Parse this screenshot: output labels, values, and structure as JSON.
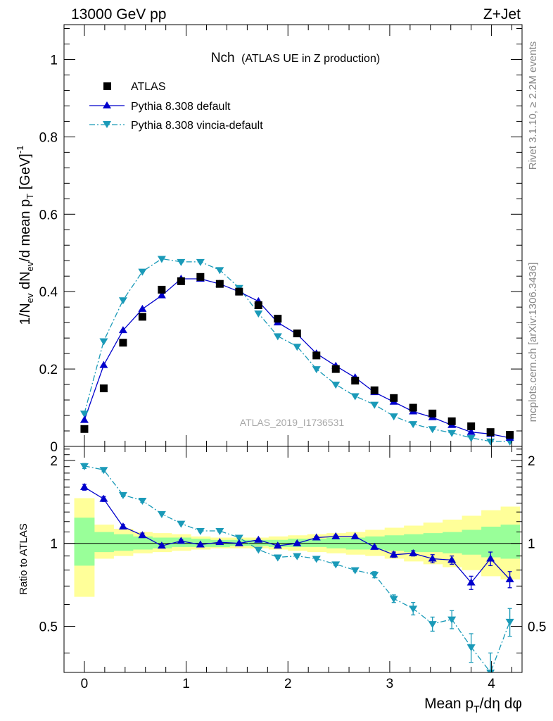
{
  "header": {
    "left": "13000 GeV pp",
    "right": "Z+Jet"
  },
  "side_labels": {
    "rivet": "Rivet 3.1.10, ≥ 2.2M events",
    "mcplots": "mcplots.cern.ch [arXiv:1306.3436]"
  },
  "colors": {
    "data": "#000000",
    "pythia_default": "#0000cc",
    "pythia_vincia": "#1a9ab8",
    "band_inner": "#99ff99",
    "band_outer": "#ffff99"
  },
  "chart_data": [
    {
      "type": "scatter",
      "panel": "main",
      "title": "Nch",
      "subtitle": "(ATLAS UE in Z production)",
      "analysis_label": "ATLAS_2019_I1736531",
      "ylabel": "1/N_ev dN_ev/d mean p_T [GeV]^-1",
      "xlim": [
        -0.2,
        4.3
      ],
      "ylim": [
        0,
        1.09
      ],
      "yticks": [
        0,
        0.2,
        0.4,
        0.6,
        0.8,
        1
      ],
      "ytick_labels": [
        "0",
        "0.2",
        "0.4",
        "0.6",
        "0.8",
        "1"
      ],
      "grid": false,
      "legend_position": "top-left",
      "x": [
        0.0,
        0.19,
        0.38,
        0.57,
        0.76,
        0.95,
        1.14,
        1.33,
        1.52,
        1.71,
        1.9,
        2.09,
        2.28,
        2.47,
        2.66,
        2.85,
        3.04,
        3.23,
        3.42,
        3.61,
        3.8,
        3.99,
        4.18
      ],
      "series": [
        {
          "name": "ATLAS",
          "style": "square-marker",
          "values": [
            0.045,
            0.15,
            0.268,
            0.335,
            0.405,
            0.427,
            0.438,
            0.42,
            0.4,
            0.365,
            0.33,
            0.292,
            0.235,
            0.2,
            0.17,
            0.145,
            0.125,
            0.1,
            0.085,
            0.065,
            0.052,
            0.037,
            0.03
          ]
        },
        {
          "name": "Pythia 8.308 default",
          "style": "solid-line-triangle-up",
          "values": [
            0.068,
            0.21,
            0.3,
            0.355,
            0.39,
            0.433,
            0.433,
            0.42,
            0.4,
            0.375,
            0.32,
            0.29,
            0.24,
            0.208,
            0.178,
            0.14,
            0.115,
            0.09,
            0.075,
            0.055,
            0.037,
            0.032,
            0.022
          ]
        },
        {
          "name": "Pythia 8.308 vincia-default",
          "style": "dashdot-line-triangle-down",
          "values": [
            0.085,
            0.272,
            0.378,
            0.452,
            0.485,
            0.477,
            0.477,
            0.456,
            0.41,
            0.344,
            0.285,
            0.258,
            0.2,
            0.16,
            0.13,
            0.108,
            0.078,
            0.058,
            0.045,
            0.035,
            0.022,
            0.013,
            0.013
          ]
        }
      ]
    },
    {
      "type": "line",
      "panel": "ratio",
      "xlabel": "Mean p_T/dη dφ",
      "ylabel": "Ratio to ATLAS",
      "xlim": [
        -0.2,
        4.3
      ],
      "ylim": [
        0.34,
        2.25
      ],
      "xticks": [
        0,
        1,
        2,
        3,
        4
      ],
      "xtick_labels": [
        "0",
        "1",
        "2",
        "3",
        "4"
      ],
      "yticks": [
        0.5,
        1,
        2
      ],
      "ytick_labels": [
        "0.5",
        "1",
        "2"
      ],
      "x": [
        0.0,
        0.19,
        0.38,
        0.57,
        0.76,
        0.95,
        1.14,
        1.33,
        1.52,
        1.71,
        1.9,
        2.09,
        2.28,
        2.47,
        2.66,
        2.85,
        3.04,
        3.23,
        3.42,
        3.61,
        3.8,
        3.99,
        4.18
      ],
      "bin_edges": [
        -0.1,
        0.1,
        0.29,
        0.48,
        0.67,
        0.86,
        1.05,
        1.24,
        1.43,
        1.62,
        1.81,
        2.0,
        2.19,
        2.38,
        2.57,
        2.76,
        2.95,
        3.14,
        3.33,
        3.52,
        3.71,
        3.9,
        4.09,
        4.28
      ],
      "band_inner": {
        "lower": [
          0.83,
          0.93,
          0.94,
          0.95,
          0.96,
          0.97,
          0.97,
          0.97,
          0.98,
          0.98,
          0.97,
          0.97,
          0.97,
          0.96,
          0.95,
          0.95,
          0.94,
          0.93,
          0.93,
          0.92,
          0.91,
          0.89,
          0.88
        ],
        "upper": [
          1.24,
          1.1,
          1.08,
          1.06,
          1.05,
          1.05,
          1.04,
          1.03,
          1.03,
          1.03,
          1.03,
          1.04,
          1.04,
          1.05,
          1.05,
          1.06,
          1.07,
          1.08,
          1.09,
          1.1,
          1.12,
          1.15,
          1.17
        ]
      },
      "band_outer": {
        "lower": [
          0.64,
          0.88,
          0.9,
          0.92,
          0.93,
          0.94,
          0.95,
          0.96,
          0.96,
          0.96,
          0.95,
          0.94,
          0.93,
          0.92,
          0.91,
          0.9,
          0.88,
          0.86,
          0.84,
          0.82,
          0.8,
          0.76,
          0.74
        ],
        "upper": [
          1.46,
          1.17,
          1.13,
          1.1,
          1.09,
          1.08,
          1.06,
          1.05,
          1.05,
          1.05,
          1.06,
          1.07,
          1.08,
          1.09,
          1.1,
          1.12,
          1.14,
          1.16,
          1.19,
          1.22,
          1.26,
          1.32,
          1.36
        ]
      },
      "series": [
        {
          "name": "Pythia 8.308 default",
          "style": "solid-line-triangle-up",
          "values": [
            1.6,
            1.45,
            1.15,
            1.07,
            0.98,
            1.02,
            0.99,
            1.01,
            1.0,
            1.03,
            0.98,
            1.0,
            1.05,
            1.06,
            1.06,
            0.97,
            0.91,
            0.92,
            0.88,
            0.87,
            0.72,
            0.88,
            0.74
          ],
          "errors": [
            0.04,
            0.03,
            0.02,
            0.02,
            0.01,
            0.01,
            0.01,
            0.01,
            0.01,
            0.01,
            0.01,
            0.01,
            0.01,
            0.01,
            0.01,
            0.01,
            0.02,
            0.02,
            0.03,
            0.03,
            0.04,
            0.05,
            0.05
          ]
        },
        {
          "name": "Pythia 8.308 vincia-default",
          "style": "dashdot-line-triangle-down",
          "values": [
            1.91,
            1.85,
            1.5,
            1.43,
            1.28,
            1.18,
            1.11,
            1.11,
            1.05,
            0.95,
            0.89,
            0.9,
            0.88,
            0.84,
            0.8,
            0.77,
            0.63,
            0.58,
            0.51,
            0.53,
            0.42,
            0.34,
            0.52
          ],
          "errors": [
            0.04,
            0.03,
            0.02,
            0.02,
            0.01,
            0.01,
            0.01,
            0.01,
            0.01,
            0.01,
            0.01,
            0.01,
            0.01,
            0.01,
            0.01,
            0.02,
            0.02,
            0.03,
            0.03,
            0.04,
            0.05,
            0.06,
            0.06
          ]
        }
      ]
    }
  ]
}
